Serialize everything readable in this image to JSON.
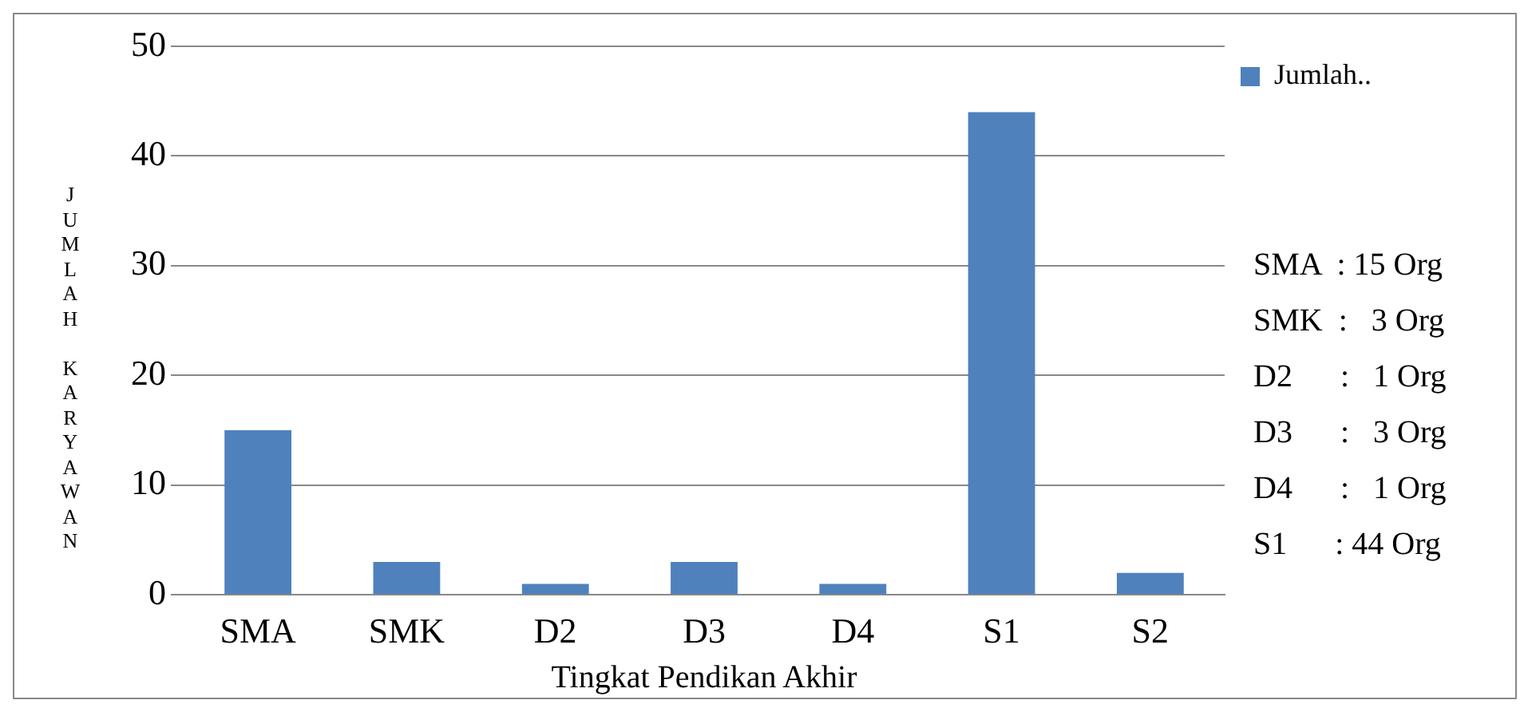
{
  "chart_data": {
    "type": "bar",
    "xlabel": "Tingkat Pendikan Akhir",
    "ylabel": "JUMLAH KARYAWAN",
    "categories": [
      "SMA",
      "SMK",
      "D2",
      "D3",
      "D4",
      "S1",
      "S2"
    ],
    "series": [
      {
        "name": "Jumlah..",
        "color": "#4f81bd",
        "values": [
          15,
          3,
          1,
          3,
          1,
          44,
          2
        ]
      }
    ],
    "ylim": [
      0,
      50
    ],
    "yticks": [
      0,
      10,
      20,
      30,
      40,
      50
    ],
    "grid": "y",
    "legend": "right",
    "annotations": [
      "SMA  : 15 Org",
      "SMK  :   3 Org",
      "D2      :   1 Org",
      "D3      :   3 Org",
      "D4      :   1 Org",
      "S1      : 44 Org"
    ]
  }
}
